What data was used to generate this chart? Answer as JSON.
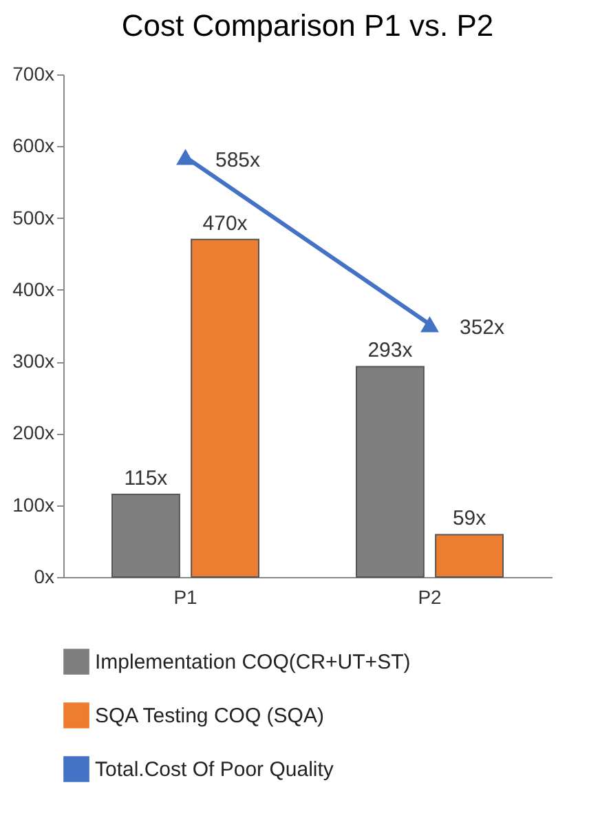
{
  "chart_data": {
    "type": "bar",
    "title": "Cost Comparison P1 vs. P2",
    "categories": [
      "P1",
      "P2"
    ],
    "series": [
      {
        "name": "Implementation COQ(CR+UT+ST)",
        "color": "#7f7f7f",
        "values": [
          115,
          293
        ],
        "value_labels": [
          "115x",
          "293x"
        ]
      },
      {
        "name": "SQA Testing COQ (SQA)",
        "color": "#ed7d31",
        "values": [
          470,
          59
        ],
        "value_labels": [
          "470x",
          "59x"
        ]
      },
      {
        "name": "Total.Cost Of Poor Quality",
        "type": "line",
        "color": "#4472c4",
        "values": [
          585,
          352
        ],
        "value_labels": [
          "585x",
          "352x"
        ]
      }
    ],
    "ylim": [
      0,
      700
    ],
    "yticks": [
      {
        "value": 0,
        "label": "0x"
      },
      {
        "value": 100,
        "label": "100x"
      },
      {
        "value": 200,
        "label": "200x"
      },
      {
        "value": 300,
        "label": "300x"
      },
      {
        "value": 400,
        "label": "400x"
      },
      {
        "value": 500,
        "label": "500x"
      },
      {
        "value": 600,
        "label": "600x"
      },
      {
        "value": 700,
        "label": "700x"
      }
    ],
    "grid": false,
    "legend": "bottom",
    "marker": "triangle",
    "line_style": "solid"
  }
}
